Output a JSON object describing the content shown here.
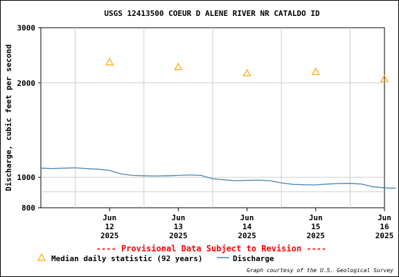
{
  "chart_data": {
    "type": "line",
    "title": "USGS 12413500 COEUR D ALENE RIVER NR CATALDO ID",
    "ylabel": "Discharge, cubic feet per second",
    "xlabel": "",
    "yscale": "log",
    "ylim": [
      800,
      3000
    ],
    "yticks": [
      800,
      1000,
      2000,
      3000
    ],
    "xticks": [
      {
        "line1": "Jun",
        "line2": "12",
        "line3": "2025"
      },
      {
        "line1": "Jun",
        "line2": "13",
        "line3": "2025"
      },
      {
        "line1": "Jun",
        "line2": "14",
        "line3": "2025"
      },
      {
        "line1": "Jun",
        "line2": "15",
        "line3": "2025"
      },
      {
        "line1": "Jun",
        "line2": "16",
        "line3": "2025"
      }
    ],
    "x_start": "2025-06-11 12:00",
    "x_end": "2025-06-16 12:00",
    "grid": true,
    "series": [
      {
        "name": "Discharge",
        "color": "#4682b4",
        "style": "line",
        "points": [
          {
            "x": "2025-06-11 12:00",
            "y": 1070
          },
          {
            "x": "2025-06-11 16:00",
            "y": 1066
          },
          {
            "x": "2025-06-11 20:00",
            "y": 1070
          },
          {
            "x": "2025-06-12 00:00",
            "y": 1072
          },
          {
            "x": "2025-06-12 04:00",
            "y": 1066
          },
          {
            "x": "2025-06-12 08:00",
            "y": 1062
          },
          {
            "x": "2025-06-12 12:00",
            "y": 1052
          },
          {
            "x": "2025-06-12 16:00",
            "y": 1026
          },
          {
            "x": "2025-06-12 20:00",
            "y": 1014
          },
          {
            "x": "2025-06-13 00:00",
            "y": 1012
          },
          {
            "x": "2025-06-13 04:00",
            "y": 1010
          },
          {
            "x": "2025-06-13 08:00",
            "y": 1012
          },
          {
            "x": "2025-06-13 12:00",
            "y": 1014
          },
          {
            "x": "2025-06-13 16:00",
            "y": 1018
          },
          {
            "x": "2025-06-13 20:00",
            "y": 1014
          },
          {
            "x": "2025-06-14 00:00",
            "y": 990
          },
          {
            "x": "2025-06-14 04:00",
            "y": 982
          },
          {
            "x": "2025-06-14 08:00",
            "y": 976
          },
          {
            "x": "2025-06-14 12:00",
            "y": 978
          },
          {
            "x": "2025-06-14 16:00",
            "y": 980
          },
          {
            "x": "2025-06-14 20:00",
            "y": 976
          },
          {
            "x": "2025-06-15 00:00",
            "y": 960
          },
          {
            "x": "2025-06-15 04:00",
            "y": 950
          },
          {
            "x": "2025-06-15 08:00",
            "y": 947
          },
          {
            "x": "2025-06-15 12:00",
            "y": 946
          },
          {
            "x": "2025-06-15 16:00",
            "y": 952
          },
          {
            "x": "2025-06-15 20:00",
            "y": 956
          },
          {
            "x": "2025-06-16 00:00",
            "y": 957
          },
          {
            "x": "2025-06-16 04:00",
            "y": 952
          },
          {
            "x": "2025-06-16 08:00",
            "y": 933
          },
          {
            "x": "2025-06-16 12:00",
            "y": 926
          },
          {
            "x": "2025-06-16 14:00",
            "y": 924
          },
          {
            "x": "2025-06-16 16:00",
            "y": 924
          }
        ]
      },
      {
        "name": "Median daily statistic (92 years)",
        "color": "#ffa500",
        "style": "triangle",
        "points": [
          {
            "x": "2025-06-12 12:00",
            "y": 2330
          },
          {
            "x": "2025-06-13 12:00",
            "y": 2250
          },
          {
            "x": "2025-06-14 12:00",
            "y": 2150
          },
          {
            "x": "2025-06-15 12:00",
            "y": 2170
          },
          {
            "x": "2025-06-16 12:00",
            "y": 2060
          }
        ]
      }
    ],
    "provisional_note": "---- Provisional Data Subject to Revision ----",
    "legend": {
      "position": "bottom",
      "median_label": "Median daily statistic (92 years)",
      "discharge_label": "Discharge"
    },
    "credit": "Graph courtesy of the U.S. Geological Survey"
  }
}
